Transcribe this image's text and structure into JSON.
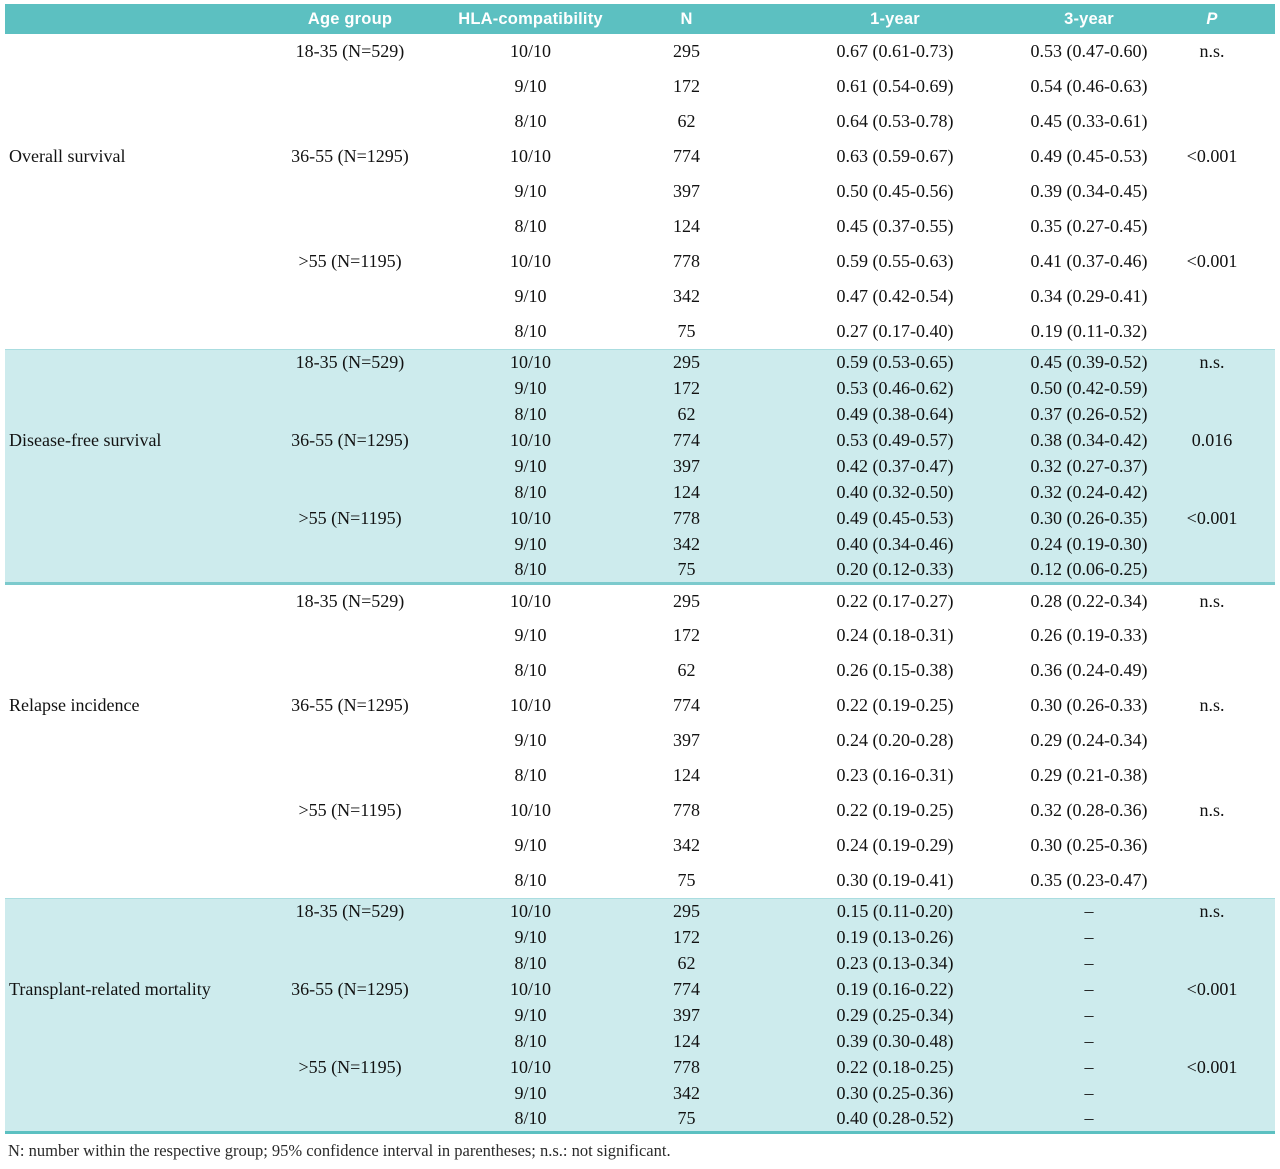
{
  "colors": {
    "header_bg": "#5cc0c1",
    "band_bg": "#cdebed",
    "divider": "#7ccacd",
    "header_text": "#ffffff"
  },
  "table": {
    "header": {
      "row_label": "",
      "age_group": "Age group",
      "hla": "HLA-compatibility",
      "n": "N",
      "one_year": "1-year",
      "three_year": "3-year",
      "p": "P"
    },
    "sections": [
      {
        "label": "Overall survival",
        "shaded": false,
        "groups": [
          {
            "age": "18-35 (N=529)",
            "p": "n.s.",
            "rows": [
              {
                "hla": "10/10",
                "n": "295",
                "y1": "0.67 (0.61-0.73)",
                "y3": "0.53 (0.47-0.60)"
              },
              {
                "hla": "9/10",
                "n": "172",
                "y1": "0.61 (0.54-0.69)",
                "y3": "0.54 (0.46-0.63)"
              },
              {
                "hla": "8/10",
                "n": "62",
                "y1": "0.64 (0.53-0.78)",
                "y3": "0.45 (0.33-0.61)"
              }
            ]
          },
          {
            "age": "36-55 (N=1295)",
            "p": "<0.001",
            "rows": [
              {
                "hla": "10/10",
                "n": "774",
                "y1": "0.63 (0.59-0.67)",
                "y3": "0.49 (0.45-0.53)"
              },
              {
                "hla": "9/10",
                "n": "397",
                "y1": "0.50 (0.45-0.56)",
                "y3": "0.39 (0.34-0.45)"
              },
              {
                "hla": "8/10",
                "n": "124",
                "y1": "0.45 (0.37-0.55)",
                "y3": "0.35 (0.27-0.45)"
              }
            ]
          },
          {
            "age": ">55 (N=1195)",
            "p": "<0.001",
            "rows": [
              {
                "hla": "10/10",
                "n": "778",
                "y1": "0.59 (0.55-0.63)",
                "y3": "0.41 (0.37-0.46)"
              },
              {
                "hla": "9/10",
                "n": "342",
                "y1": "0.47 (0.42-0.54)",
                "y3": "0.34 (0.29-0.41)"
              },
              {
                "hla": "8/10",
                "n": "75",
                "y1": "0.27 (0.17-0.40)",
                "y3": "0.19 (0.11-0.32)"
              }
            ]
          }
        ]
      },
      {
        "label": "Disease-free survival",
        "shaded": true,
        "groups": [
          {
            "age": "18-35 (N=529)",
            "p": "n.s.",
            "rows": [
              {
                "hla": "10/10",
                "n": "295",
                "y1": "0.59 (0.53-0.65)",
                "y3": "0.45 (0.39-0.52)"
              },
              {
                "hla": "9/10",
                "n": "172",
                "y1": "0.53 (0.46-0.62)",
                "y3": "0.50 (0.42-0.59)"
              },
              {
                "hla": "8/10",
                "n": "62",
                "y1": "0.49 (0.38-0.64)",
                "y3": "0.37 (0.26-0.52)"
              }
            ]
          },
          {
            "age": "36-55 (N=1295)",
            "p": "0.016",
            "rows": [
              {
                "hla": "10/10",
                "n": "774",
                "y1": "0.53 (0.49-0.57)",
                "y3": "0.38 (0.34-0.42)"
              },
              {
                "hla": "9/10",
                "n": "397",
                "y1": "0.42 (0.37-0.47)",
                "y3": "0.32 (0.27-0.37)"
              },
              {
                "hla": "8/10",
                "n": "124",
                "y1": "0.40 (0.32-0.50)",
                "y3": "0.32 (0.24-0.42)"
              }
            ]
          },
          {
            "age": ">55 (N=1195)",
            "p": "<0.001",
            "rows": [
              {
                "hla": "10/10",
                "n": "778",
                "y1": "0.49 (0.45-0.53)",
                "y3": "0.30 (0.26-0.35)"
              },
              {
                "hla": "9/10",
                "n": "342",
                "y1": "0.40 (0.34-0.46)",
                "y3": "0.24 (0.19-0.30)"
              },
              {
                "hla": "8/10",
                "n": "75",
                "y1": "0.20 (0.12-0.33)",
                "y3": "0.12 (0.06-0.25)"
              }
            ]
          }
        ]
      },
      {
        "label": "Relapse incidence",
        "shaded": false,
        "groups": [
          {
            "age": "18-35 (N=529)",
            "p": "n.s.",
            "rows": [
              {
                "hla": "10/10",
                "n": "295",
                "y1": "0.22 (0.17-0.27)",
                "y3": "0.28 (0.22-0.34)"
              },
              {
                "hla": "9/10",
                "n": "172",
                "y1": "0.24 (0.18-0.31)",
                "y3": "0.26 (0.19-0.33)"
              },
              {
                "hla": "8/10",
                "n": "62",
                "y1": "0.26 (0.15-0.38)",
                "y3": "0.36 (0.24-0.49)"
              }
            ]
          },
          {
            "age": "36-55 (N=1295)",
            "p": "n.s.",
            "rows": [
              {
                "hla": "10/10",
                "n": "774",
                "y1": "0.22 (0.19-0.25)",
                "y3": "0.30 (0.26-0.33)"
              },
              {
                "hla": "9/10",
                "n": "397",
                "y1": "0.24 (0.20-0.28)",
                "y3": "0.29 (0.24-0.34)"
              },
              {
                "hla": "8/10",
                "n": "124",
                "y1": "0.23 (0.16-0.31)",
                "y3": "0.29 (0.21-0.38)"
              }
            ]
          },
          {
            "age": ">55 (N=1195)",
            "p": "n.s.",
            "rows": [
              {
                "hla": "10/10",
                "n": "778",
                "y1": "0.22 (0.19-0.25)",
                "y3": "0.32 (0.28-0.36)"
              },
              {
                "hla": "9/10",
                "n": "342",
                "y1": "0.24 (0.19-0.29)",
                "y3": "0.30 (0.25-0.36)"
              },
              {
                "hla": "8/10",
                "n": "75",
                "y1": "0.30 (0.19-0.41)",
                "y3": "0.35 (0.23-0.47)"
              }
            ]
          }
        ]
      },
      {
        "label": "Transplant-related mortality",
        "shaded": true,
        "groups": [
          {
            "age": "18-35 (N=529)",
            "p": "n.s.",
            "rows": [
              {
                "hla": "10/10",
                "n": "295",
                "y1": "0.15 (0.11-0.20)",
                "y3": "–"
              },
              {
                "hla": "9/10",
                "n": "172",
                "y1": "0.19 (0.13-0.26)",
                "y3": "–"
              },
              {
                "hla": "8/10",
                "n": "62",
                "y1": "0.23 (0.13-0.34)",
                "y3": "–"
              }
            ]
          },
          {
            "age": "36-55 (N=1295)",
            "p": "<0.001",
            "rows": [
              {
                "hla": "10/10",
                "n": "774",
                "y1": "0.19 (0.16-0.22)",
                "y3": "–"
              },
              {
                "hla": "9/10",
                "n": "397",
                "y1": "0.29 (0.25-0.34)",
                "y3": "–"
              },
              {
                "hla": "8/10",
                "n": "124",
                "y1": "0.39 (0.30-0.48)",
                "y3": "–"
              }
            ]
          },
          {
            "age": ">55 (N=1195)",
            "p": "<0.001",
            "rows": [
              {
                "hla": "10/10",
                "n": "778",
                "y1": "0.22 (0.18-0.25)",
                "y3": "–"
              },
              {
                "hla": "9/10",
                "n": "342",
                "y1": "0.30 (0.25-0.36)",
                "y3": "–"
              },
              {
                "hla": "8/10",
                "n": "75",
                "y1": "0.40 (0.28-0.52)",
                "y3": "–"
              }
            ]
          }
        ]
      }
    ],
    "footnote": "N: number within the respective group; 95% confidence interval in parentheses; n.s.: not significant."
  }
}
